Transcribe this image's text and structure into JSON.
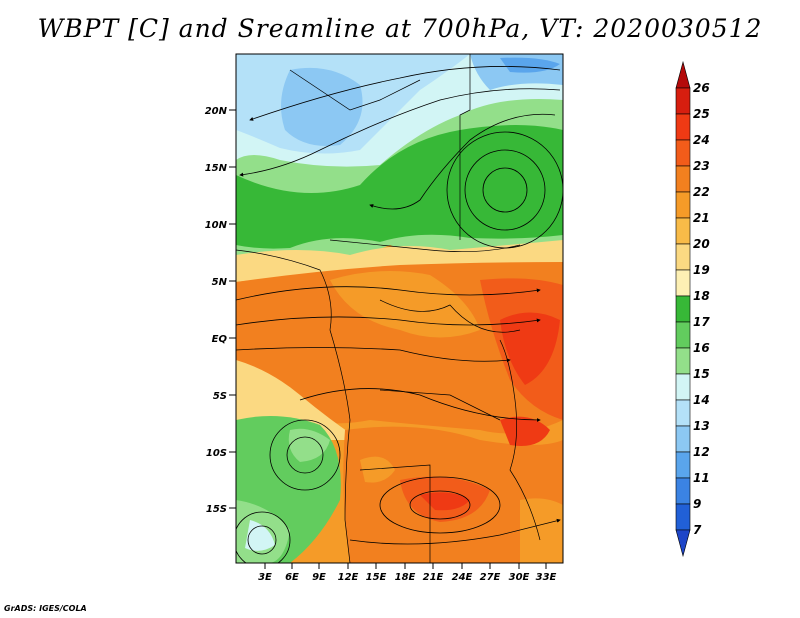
{
  "title": "WBPT [C] and Sreamline at 700hPa, VT: 2020030512",
  "credit": "GrADS: IGES/COLA",
  "map": {
    "lat_labels": [
      "20N",
      "15N",
      "10N",
      "5N",
      "EQ",
      "5S",
      "10S",
      "15S"
    ],
    "lon_labels": [
      "3E",
      "6E",
      "9E",
      "12E",
      "15E",
      "18E",
      "21E",
      "24E",
      "27E",
      "30E",
      "33E"
    ]
  },
  "colorbar": {
    "labels": [
      "26",
      "25",
      "24",
      "23",
      "22",
      "21",
      "20",
      "19",
      "18",
      "17",
      "16",
      "15",
      "14",
      "13",
      "12",
      "11",
      "9",
      "7"
    ],
    "colors": [
      "#b40a0a",
      "#d71e0f",
      "#ef3a14",
      "#f25c1a",
      "#f2801f",
      "#f59b28",
      "#f8bb48",
      "#fbd982",
      "#fdf0b4",
      "#37b837",
      "#62cc5e",
      "#93df8a",
      "#d2f5f5",
      "#b4e1f8",
      "#8cc8f3",
      "#5aa5ec",
      "#3b83e3",
      "#2160d7",
      "#1e46c8"
    ]
  }
}
